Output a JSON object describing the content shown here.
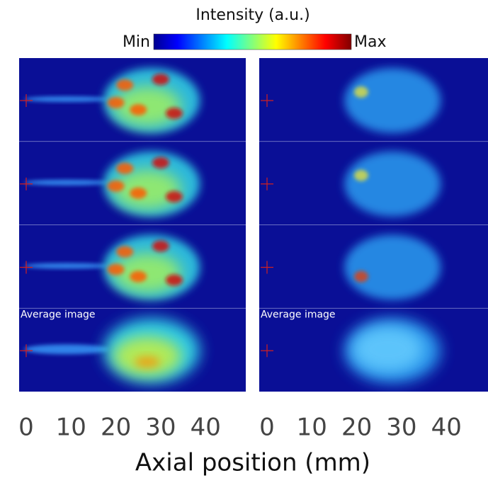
{
  "colorbar": {
    "title": "Intensity (a.u.)",
    "min_label": "Min",
    "max_label": "Max"
  },
  "panels": [
    {
      "average_label": "Average image",
      "xticks": [
        0,
        10,
        20,
        30,
        40
      ]
    },
    {
      "average_label": "Average image",
      "xticks": [
        0,
        10,
        20,
        30,
        40
      ]
    }
  ],
  "x_axis_label": "Axial position (mm)"
}
